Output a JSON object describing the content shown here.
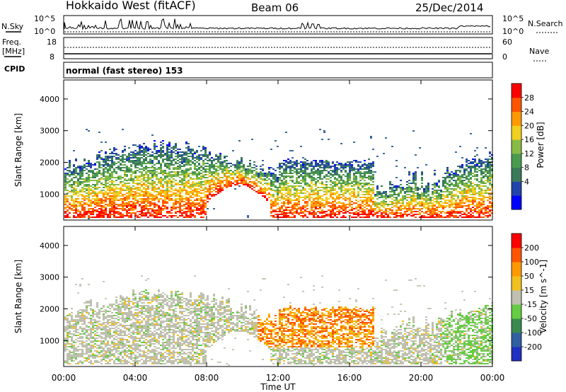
{
  "header": {
    "title": "Hokkaido West (fitACF)",
    "beam": "Beam 06",
    "date": "25/Dec/2014"
  },
  "noise_panel": {
    "left_label": "N.Sky",
    "right_label": "N.Search",
    "tick_top_left": "10^5",
    "tick_bottom_left": "10^0",
    "tick_top_right": "10^5",
    "tick_bottom_right": "10^0"
  },
  "freq_panel": {
    "left_label_1": "Freq.",
    "left_label_2": "[MHz]",
    "tick_top_left": "18",
    "tick_bottom_left": "8",
    "right_label": "Nave",
    "tick_top_right": "60",
    "tick_bottom_right": "0"
  },
  "cpid_panel": {
    "label": "CPID",
    "text": "normal (fast stereo) 153"
  },
  "chart_data": [
    {
      "type": "heatmap",
      "name": "power",
      "ylabel": "Slant Range [km]",
      "yticks": [
        "4000",
        "3000",
        "2000",
        "1000"
      ],
      "ylim": [
        180,
        4600
      ],
      "colorbar_label": "Power [dB]",
      "colorbar_ticks": [
        "28",
        "24",
        "20",
        "16",
        "12",
        "8",
        "4"
      ],
      "colors": [
        "#0000ff",
        "#2244aa",
        "#3a7a5a",
        "#4a9a50",
        "#88bb44",
        "#f0d020",
        "#ff9900",
        "#ff5500",
        "#ff0000"
      ]
    },
    {
      "type": "heatmap",
      "name": "velocity",
      "ylabel": "Slant Range [km]",
      "yticks": [
        "4000",
        "3000",
        "2000",
        "1000"
      ],
      "ylim": [
        180,
        4600
      ],
      "colorbar_label": "Velocity [m s^-1]",
      "colorbar_ticks": [
        "200",
        "100",
        "50",
        "15",
        "-15",
        "-50",
        "-100",
        "-200"
      ],
      "colors": [
        "#2030c0",
        "#3060a0",
        "#3a8a50",
        "#66cc44",
        "#c0c0b0",
        "#f0c020",
        "#ff9900",
        "#ff5500",
        "#ff0000"
      ]
    }
  ],
  "xaxis": {
    "ticks": [
      "00:00",
      "04:00",
      "08:00",
      "12:00",
      "16:00",
      "20:00",
      "00:00"
    ],
    "label": "Time UT"
  }
}
